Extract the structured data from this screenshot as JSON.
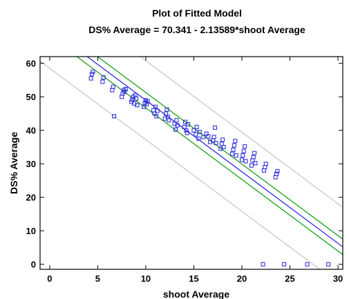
{
  "chart_data": {
    "type": "scatter",
    "title": "Plot of Fitted Model",
    "subtitle": "DS% Average = 70.341 - 2.13589*shoot Average",
    "xlabel": "shoot Average",
    "ylabel": "DS% Average",
    "xlim": [
      -1,
      30.5
    ],
    "ylim": [
      -1.5,
      62
    ],
    "x_ticks": [
      0,
      5,
      10,
      15,
      20,
      25,
      30
    ],
    "y_ticks": [
      0,
      10,
      20,
      30,
      40,
      50,
      60
    ],
    "grid": false,
    "fit": {
      "intercept": 70.341,
      "slope": -2.13589
    },
    "confidence_band_half_width": 2.3,
    "prediction_band_half_width": 11.8,
    "colors": {
      "points": "#3333dd",
      "fit_line": "#2a2ae0",
      "confidence_limits": "#1aa01a",
      "prediction_limits": "#c8c8c8",
      "axis": "#000000"
    },
    "points": [
      [
        4.3,
        55.5
      ],
      [
        4.4,
        56.8
      ],
      [
        4.5,
        57.5
      ],
      [
        5.5,
        54.5
      ],
      [
        5.6,
        55.8
      ],
      [
        6.5,
        52.0
      ],
      [
        6.6,
        53.0
      ],
      [
        6.7,
        44.2
      ],
      [
        7.5,
        50.0
      ],
      [
        7.6,
        51.0
      ],
      [
        7.7,
        52.0
      ],
      [
        7.8,
        51.5
      ],
      [
        7.9,
        52.3
      ],
      [
        8.5,
        48.5
      ],
      [
        8.6,
        49.2
      ],
      [
        8.7,
        50.0
      ],
      [
        8.8,
        48.0
      ],
      [
        8.9,
        50.5
      ],
      [
        9.0,
        49.5
      ],
      [
        9.1,
        47.5
      ],
      [
        9.8,
        47.0
      ],
      [
        9.9,
        48.2
      ],
      [
        10.0,
        49.0
      ],
      [
        10.1,
        47.8
      ],
      [
        10.2,
        48.6
      ],
      [
        10.8,
        46.0
      ],
      [
        10.9,
        45.0
      ],
      [
        11.0,
        47.0
      ],
      [
        11.1,
        44.2
      ],
      [
        11.2,
        45.8
      ],
      [
        12.0,
        43.5
      ],
      [
        12.1,
        45.0
      ],
      [
        12.2,
        46.2
      ],
      [
        12.3,
        44.0
      ],
      [
        12.4,
        43.0
      ],
      [
        13.0,
        42.0
      ],
      [
        13.1,
        40.2
      ],
      [
        13.2,
        43.0
      ],
      [
        13.3,
        41.5
      ],
      [
        14.0,
        41.0
      ],
      [
        14.1,
        42.5
      ],
      [
        14.2,
        40.0
      ],
      [
        14.3,
        39.2
      ],
      [
        14.4,
        41.8
      ],
      [
        15.0,
        40.0
      ],
      [
        15.2,
        38.8
      ],
      [
        15.3,
        41.0
      ],
      [
        15.5,
        37.5
      ],
      [
        15.6,
        39.5
      ],
      [
        16.0,
        38.0
      ],
      [
        16.3,
        39.0
      ],
      [
        16.5,
        38.2
      ],
      [
        16.7,
        36.5
      ],
      [
        17.0,
        37.0
      ],
      [
        17.1,
        38.0
      ],
      [
        17.2,
        40.8
      ],
      [
        17.3,
        36.2
      ],
      [
        17.8,
        34.5
      ],
      [
        17.9,
        36.0
      ],
      [
        18.0,
        37.2
      ],
      [
        18.1,
        35.0
      ],
      [
        19.0,
        33.0
      ],
      [
        19.1,
        34.2
      ],
      [
        19.2,
        35.5
      ],
      [
        19.3,
        36.8
      ],
      [
        19.4,
        32.5
      ],
      [
        20.0,
        31.2
      ],
      [
        20.1,
        32.5
      ],
      [
        20.2,
        33.8
      ],
      [
        20.3,
        35.2
      ],
      [
        20.4,
        30.8
      ],
      [
        21.0,
        29.5
      ],
      [
        21.1,
        31.0
      ],
      [
        21.2,
        32.0
      ],
      [
        21.3,
        33.2
      ],
      [
        21.4,
        30.2
      ],
      [
        22.3,
        28.0
      ],
      [
        22.4,
        29.0
      ],
      [
        22.5,
        30.0
      ],
      [
        23.5,
        26.0
      ],
      [
        23.6,
        27.0
      ],
      [
        23.7,
        27.8
      ],
      [
        22.2,
        0.0
      ],
      [
        24.4,
        0.0
      ],
      [
        26.8,
        0.0
      ],
      [
        29.0,
        0.0
      ]
    ]
  }
}
